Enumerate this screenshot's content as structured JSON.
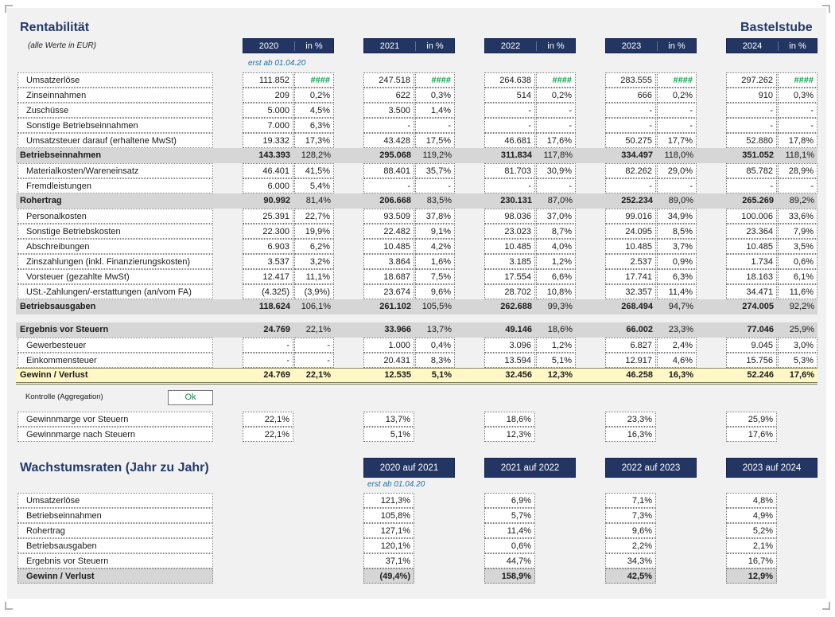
{
  "header": {
    "title": "Rentabilität",
    "company": "Bastelstube",
    "subtitle": "(alle Werte in EUR)",
    "note_start": "erst ab 01.04.20"
  },
  "years": [
    {
      "year": "2020",
      "pct": "in %"
    },
    {
      "year": "2021",
      "pct": "in %"
    },
    {
      "year": "2022",
      "pct": "in %"
    },
    {
      "year": "2023",
      "pct": "in %"
    },
    {
      "year": "2024",
      "pct": "in %"
    }
  ],
  "rows": [
    {
      "label": "Umsatzerlöse",
      "kind": "item",
      "values": [
        [
          "111.852",
          "####"
        ],
        [
          "247.518",
          "####"
        ],
        [
          "264.638",
          "####"
        ],
        [
          "283.555",
          "####"
        ],
        [
          "297.262",
          "####"
        ]
      ]
    },
    {
      "label": "Zinseinnahmen",
      "kind": "item",
      "values": [
        [
          "209",
          "0,2%"
        ],
        [
          "622",
          "0,3%"
        ],
        [
          "514",
          "0,2%"
        ],
        [
          "666",
          "0,2%"
        ],
        [
          "910",
          "0,3%"
        ]
      ]
    },
    {
      "label": "Zuschüsse",
      "kind": "item",
      "values": [
        [
          "5.000",
          "4,5%"
        ],
        [
          "3.500",
          "1,4%"
        ],
        [
          "-",
          "-"
        ],
        [
          "-",
          "-"
        ],
        [
          "-",
          "-"
        ]
      ]
    },
    {
      "label": "Sonstige Betriebseinnahmen",
      "kind": "item",
      "values": [
        [
          "7.000",
          "6,3%"
        ],
        [
          "-",
          "-"
        ],
        [
          "-",
          "-"
        ],
        [
          "-",
          "-"
        ],
        [
          "-",
          "-"
        ]
      ]
    },
    {
      "label": "Umsatzsteuer darauf (erhaltene MwSt)",
      "kind": "item",
      "values": [
        [
          "19.332",
          "17,3%"
        ],
        [
          "43.428",
          "17,5%"
        ],
        [
          "46.681",
          "17,6%"
        ],
        [
          "50.275",
          "17,7%"
        ],
        [
          "52.880",
          "17,8%"
        ]
      ]
    },
    {
      "label": "Betriebseinnahmen",
      "kind": "total",
      "values": [
        [
          "143.393",
          "128,2%"
        ],
        [
          "295.068",
          "119,2%"
        ],
        [
          "311.834",
          "117,8%"
        ],
        [
          "334.497",
          "118,0%"
        ],
        [
          "351.052",
          "118,1%"
        ]
      ]
    },
    {
      "label": "Materialkosten/Wareneinsatz",
      "kind": "item",
      "values": [
        [
          "46.401",
          "41,5%"
        ],
        [
          "88.401",
          "35,7%"
        ],
        [
          "81.703",
          "30,9%"
        ],
        [
          "82.262",
          "29,0%"
        ],
        [
          "85.782",
          "28,9%"
        ]
      ]
    },
    {
      "label": "Fremdleistungen",
      "kind": "item",
      "values": [
        [
          "6.000",
          "5,4%"
        ],
        [
          "-",
          "-"
        ],
        [
          "-",
          "-"
        ],
        [
          "-",
          "-"
        ],
        [
          "-",
          "-"
        ]
      ]
    },
    {
      "label": "Rohertrag",
      "kind": "total",
      "values": [
        [
          "90.992",
          "81,4%"
        ],
        [
          "206.668",
          "83,5%"
        ],
        [
          "230.131",
          "87,0%"
        ],
        [
          "252.234",
          "89,0%"
        ],
        [
          "265.269",
          "89,2%"
        ]
      ]
    },
    {
      "label": "Personalkosten",
      "kind": "item",
      "values": [
        [
          "25.391",
          "22,7%"
        ],
        [
          "93.509",
          "37,8%"
        ],
        [
          "98.036",
          "37,0%"
        ],
        [
          "99.016",
          "34,9%"
        ],
        [
          "100.006",
          "33,6%"
        ]
      ]
    },
    {
      "label": "Sonstige Betriebskosten",
      "kind": "item",
      "values": [
        [
          "22.300",
          "19,9%"
        ],
        [
          "22.482",
          "9,1%"
        ],
        [
          "23.023",
          "8,7%"
        ],
        [
          "24.095",
          "8,5%"
        ],
        [
          "23.364",
          "7,9%"
        ]
      ]
    },
    {
      "label": "Abschreibungen",
      "kind": "item",
      "values": [
        [
          "6.903",
          "6,2%"
        ],
        [
          "10.485",
          "4,2%"
        ],
        [
          "10.485",
          "4,0%"
        ],
        [
          "10.485",
          "3,7%"
        ],
        [
          "10.485",
          "3,5%"
        ]
      ]
    },
    {
      "label": "Zinszahlungen (inkl. Finanzierungskosten)",
      "kind": "item",
      "values": [
        [
          "3.537",
          "3,2%"
        ],
        [
          "3.864",
          "1,6%"
        ],
        [
          "3.185",
          "1,2%"
        ],
        [
          "2.537",
          "0,9%"
        ],
        [
          "1.734",
          "0,6%"
        ]
      ]
    },
    {
      "label": "Vorsteuer (gezahlte MwSt)",
      "kind": "item",
      "values": [
        [
          "12.417",
          "11,1%"
        ],
        [
          "18.687",
          "7,5%"
        ],
        [
          "17.554",
          "6,6%"
        ],
        [
          "17.741",
          "6,3%"
        ],
        [
          "18.163",
          "6,1%"
        ]
      ]
    },
    {
      "label": "USt.-Zahlungen/-erstattungen (an/vom FA)",
      "kind": "item",
      "values": [
        [
          "(4.325)",
          "(3,9%)"
        ],
        [
          "23.674",
          "9,6%"
        ],
        [
          "28.702",
          "10,8%"
        ],
        [
          "32.357",
          "11,4%"
        ],
        [
          "34.471",
          "11,6%"
        ]
      ]
    },
    {
      "label": "Betriebsausgaben",
      "kind": "total",
      "values": [
        [
          "118.624",
          "106,1%"
        ],
        [
          "261.102",
          "105,5%"
        ],
        [
          "262.688",
          "99,3%"
        ],
        [
          "268.494",
          "94,7%"
        ],
        [
          "274.005",
          "92,2%"
        ]
      ]
    },
    {
      "label": "Ergebnis vor Steuern",
      "kind": "total",
      "values": [
        [
          "24.769",
          "22,1%"
        ],
        [
          "33.966",
          "13,7%"
        ],
        [
          "49.146",
          "18,6%"
        ],
        [
          "66.002",
          "23,3%"
        ],
        [
          "77.046",
          "25,9%"
        ]
      ]
    },
    {
      "label": "Gewerbesteuer",
      "kind": "item",
      "values": [
        [
          "-",
          "-"
        ],
        [
          "1.000",
          "0,4%"
        ],
        [
          "3.096",
          "1,2%"
        ],
        [
          "6.827",
          "2,4%"
        ],
        [
          "9.045",
          "3,0%"
        ]
      ]
    },
    {
      "label": "Einkommensteuer",
      "kind": "item",
      "values": [
        [
          "-",
          "-"
        ],
        [
          "20.431",
          "8,3%"
        ],
        [
          "13.594",
          "5,1%"
        ],
        [
          "12.917",
          "4,6%"
        ],
        [
          "15.756",
          "5,3%"
        ]
      ]
    },
    {
      "label": "Gewinn / Verlust",
      "kind": "gewinn",
      "values": [
        [
          "24.769",
          "22,1%"
        ],
        [
          "12.535",
          "5,1%"
        ],
        [
          "32.456",
          "12,3%"
        ],
        [
          "46.258",
          "16,3%"
        ],
        [
          "52.246",
          "17,6%"
        ]
      ]
    }
  ],
  "kontrolle": {
    "label": "Kontrolle (Aggregation)",
    "status": "Ok"
  },
  "margins": [
    {
      "label": "Gewinnmarge vor Steuern",
      "values": [
        "22,1%",
        "13,7%",
        "18,6%",
        "23,3%",
        "25,9%"
      ]
    },
    {
      "label": "Gewinnmarge nach Steuern",
      "values": [
        "22,1%",
        "5,1%",
        "12,3%",
        "16,3%",
        "17,6%"
      ]
    }
  ],
  "growth": {
    "title": "Wachstumsraten (Jahr zu Jahr)",
    "note": "erst ab 01.04.20",
    "periods": [
      "2020 auf 2021",
      "2021 auf 2022",
      "2022 auf 2023",
      "2023 auf 2024"
    ],
    "rows": [
      {
        "label": "Umsatzerlöse",
        "values": [
          "121,3%",
          "6,9%",
          "7,1%",
          "4,8%"
        ]
      },
      {
        "label": "Betriebseinnahmen",
        "values": [
          "105,8%",
          "5,7%",
          "7,3%",
          "4,9%"
        ]
      },
      {
        "label": "Rohertrag",
        "values": [
          "127,1%",
          "11,4%",
          "9,6%",
          "5,2%"
        ]
      },
      {
        "label": "Betriebsausgaben",
        "values": [
          "120,1%",
          "0,6%",
          "2,2%",
          "2,1%"
        ]
      },
      {
        "label": "Ergebnis vor Steuern",
        "values": [
          "37,1%",
          "44,7%",
          "34,3%",
          "16,7%"
        ]
      },
      {
        "label": "Gewinn / Verlust",
        "values": [
          "(49,4%)",
          "158,9%",
          "42,5%",
          "12,9%"
        ],
        "bold": true
      }
    ]
  }
}
